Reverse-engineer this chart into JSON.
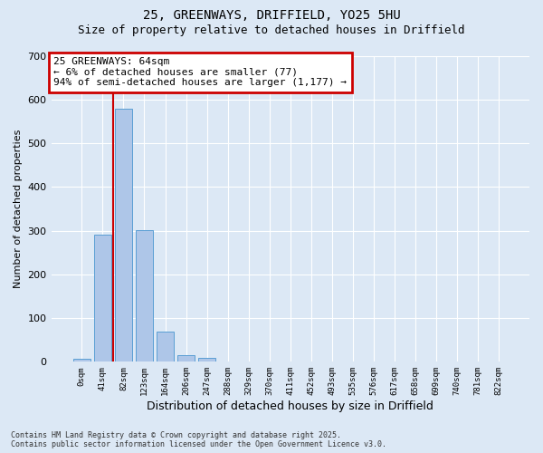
{
  "title_line1": "25, GREENWAYS, DRIFFIELD, YO25 5HU",
  "title_line2": "Size of property relative to detached houses in Driffield",
  "xlabel": "Distribution of detached houses by size in Driffield",
  "ylabel": "Number of detached properties",
  "footnote": "Contains HM Land Registry data © Crown copyright and database right 2025.\nContains public sector information licensed under the Open Government Licence v3.0.",
  "bar_labels": [
    "0sqm",
    "41sqm",
    "82sqm",
    "123sqm",
    "164sqm",
    "206sqm",
    "247sqm",
    "288sqm",
    "329sqm",
    "370sqm",
    "411sqm",
    "452sqm",
    "493sqm",
    "535sqm",
    "576sqm",
    "617sqm",
    "658sqm",
    "699sqm",
    "740sqm",
    "781sqm",
    "822sqm"
  ],
  "bar_values": [
    7,
    290,
    578,
    302,
    70,
    15,
    8,
    0,
    0,
    0,
    0,
    0,
    0,
    0,
    0,
    0,
    0,
    0,
    0,
    0,
    0
  ],
  "bar_color": "#aec6e8",
  "bar_edge_color": "#5a9fd4",
  "ylim": [
    0,
    700
  ],
  "yticks": [
    0,
    100,
    200,
    300,
    400,
    500,
    600,
    700
  ],
  "property_size": 64,
  "vline_x_index": 1.5,
  "annotation_text": "25 GREENWAYS: 64sqm\n← 6% of detached houses are smaller (77)\n94% of semi-detached houses are larger (1,177) →",
  "annotation_box_color": "#ffffff",
  "annotation_box_edge": "#cc0000",
  "vline_color": "#cc0000",
  "background_color": "#dce8f5",
  "title_fontsize": 10,
  "subtitle_fontsize": 9
}
